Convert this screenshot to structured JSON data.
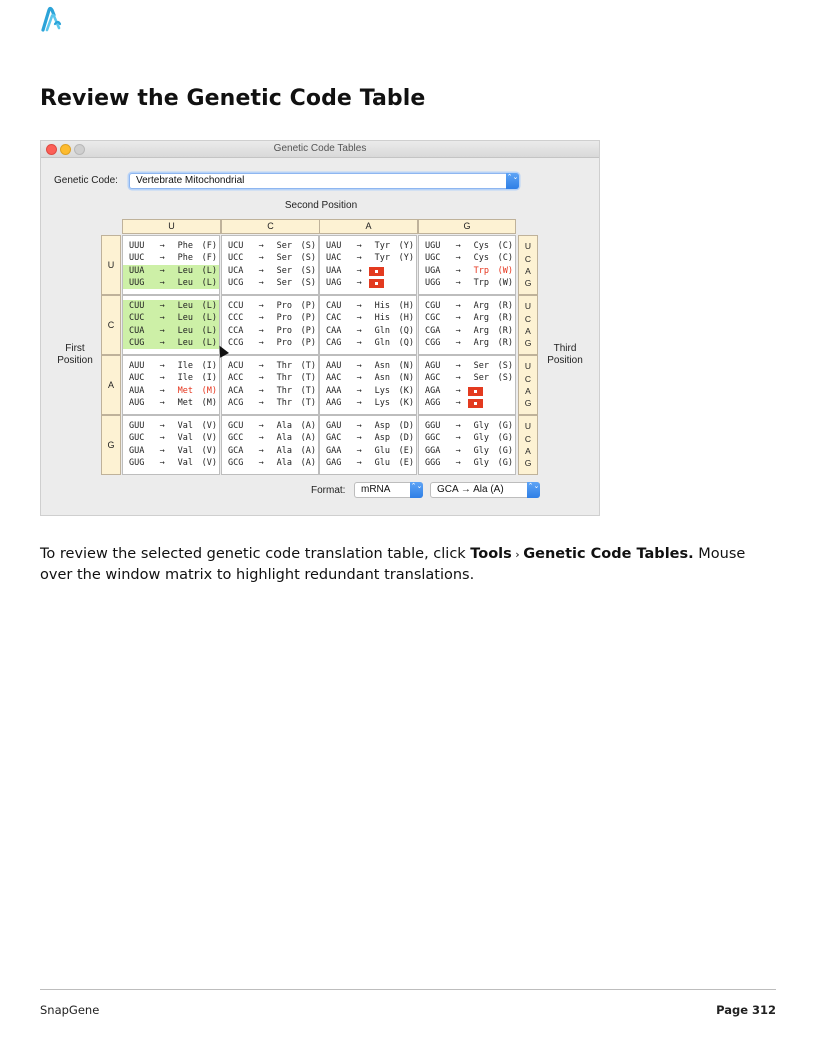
{
  "page_title": "Review the Genetic Code Table",
  "window": {
    "title": "Genetic Code Tables",
    "genetic_code_label": "Genetic Code:",
    "genetic_code_value": "Vertebrate Mitochondrial",
    "second_position": "Second Position",
    "first_position": "First\nPosition",
    "third_position": "Third\nPosition",
    "columns": [
      "U",
      "C",
      "A",
      "G"
    ],
    "rows": [
      "U",
      "C",
      "A",
      "G"
    ],
    "third_bases": [
      "U",
      "C",
      "A",
      "G"
    ],
    "format_label": "Format:",
    "format_value": "mRNA",
    "display_value": "GCA → Ala (A)",
    "stepper_glyph": "⌃⌄",
    "arrow": "→",
    "stop_color": "#e33a1f",
    "highlight_color": "#cdf0a7",
    "cells": [
      [
        [
          [
            "UUU",
            "Phe",
            "(F)",
            "",
            ""
          ],
          [
            "UUC",
            "Phe",
            "(F)",
            "",
            ""
          ],
          [
            "UUA",
            "Leu",
            "(L)",
            "hl",
            ""
          ],
          [
            "UUG",
            "Leu",
            "(L)",
            "hl",
            ""
          ]
        ],
        [
          [
            "UCU",
            "Ser",
            "(S)",
            "",
            ""
          ],
          [
            "UCC",
            "Ser",
            "(S)",
            "",
            ""
          ],
          [
            "UCA",
            "Ser",
            "(S)",
            "",
            ""
          ],
          [
            "UCG",
            "Ser",
            "(S)",
            "",
            ""
          ]
        ],
        [
          [
            "UAU",
            "Tyr",
            "(Y)",
            "",
            ""
          ],
          [
            "UAC",
            "Tyr",
            "(Y)",
            "",
            ""
          ],
          [
            "UAA",
            "",
            "",
            "",
            "stop"
          ],
          [
            "UAG",
            "",
            "",
            "",
            "stop"
          ]
        ],
        [
          [
            "UGU",
            "Cys",
            "(C)",
            "",
            ""
          ],
          [
            "UGC",
            "Cys",
            "(C)",
            "",
            ""
          ],
          [
            "UGA",
            "Trp",
            "(W)",
            "",
            "red"
          ],
          [
            "UGG",
            "Trp",
            "(W)",
            "",
            ""
          ]
        ]
      ],
      [
        [
          [
            "CUU",
            "Leu",
            "(L)",
            "hl",
            ""
          ],
          [
            "CUC",
            "Leu",
            "(L)",
            "hl",
            ""
          ],
          [
            "CUA",
            "Leu",
            "(L)",
            "hl",
            ""
          ],
          [
            "CUG",
            "Leu",
            "(L)",
            "hl",
            ""
          ]
        ],
        [
          [
            "CCU",
            "Pro",
            "(P)",
            "",
            ""
          ],
          [
            "CCC",
            "Pro",
            "(P)",
            "",
            ""
          ],
          [
            "CCA",
            "Pro",
            "(P)",
            "",
            ""
          ],
          [
            "CCG",
            "Pro",
            "(P)",
            "",
            ""
          ]
        ],
        [
          [
            "CAU",
            "His",
            "(H)",
            "",
            ""
          ],
          [
            "CAC",
            "His",
            "(H)",
            "",
            ""
          ],
          [
            "CAA",
            "Gln",
            "(Q)",
            "",
            ""
          ],
          [
            "CAG",
            "Gln",
            "(Q)",
            "",
            ""
          ]
        ],
        [
          [
            "CGU",
            "Arg",
            "(R)",
            "",
            ""
          ],
          [
            "CGC",
            "Arg",
            "(R)",
            "",
            ""
          ],
          [
            "CGA",
            "Arg",
            "(R)",
            "",
            ""
          ],
          [
            "CGG",
            "Arg",
            "(R)",
            "",
            ""
          ]
        ]
      ],
      [
        [
          [
            "AUU",
            "Ile",
            "(I)",
            "",
            ""
          ],
          [
            "AUC",
            "Ile",
            "(I)",
            "",
            ""
          ],
          [
            "AUA",
            "Met",
            "(M)",
            "",
            "red"
          ],
          [
            "AUG",
            "Met",
            "(M)",
            "",
            ""
          ]
        ],
        [
          [
            "ACU",
            "Thr",
            "(T)",
            "",
            ""
          ],
          [
            "ACC",
            "Thr",
            "(T)",
            "",
            ""
          ],
          [
            "ACA",
            "Thr",
            "(T)",
            "",
            ""
          ],
          [
            "ACG",
            "Thr",
            "(T)",
            "",
            ""
          ]
        ],
        [
          [
            "AAU",
            "Asn",
            "(N)",
            "",
            ""
          ],
          [
            "AAC",
            "Asn",
            "(N)",
            "",
            ""
          ],
          [
            "AAA",
            "Lys",
            "(K)",
            "",
            ""
          ],
          [
            "AAG",
            "Lys",
            "(K)",
            "",
            ""
          ]
        ],
        [
          [
            "AGU",
            "Ser",
            "(S)",
            "",
            ""
          ],
          [
            "AGC",
            "Ser",
            "(S)",
            "",
            ""
          ],
          [
            "AGA",
            "",
            "",
            "",
            "stop"
          ],
          [
            "AGG",
            "",
            "",
            "",
            "stop"
          ]
        ]
      ],
      [
        [
          [
            "GUU",
            "Val",
            "(V)",
            "",
            ""
          ],
          [
            "GUC",
            "Val",
            "(V)",
            "",
            ""
          ],
          [
            "GUA",
            "Val",
            "(V)",
            "",
            ""
          ],
          [
            "GUG",
            "Val",
            "(V)",
            "",
            ""
          ]
        ],
        [
          [
            "GCU",
            "Ala",
            "(A)",
            "",
            ""
          ],
          [
            "GCC",
            "Ala",
            "(A)",
            "",
            ""
          ],
          [
            "GCA",
            "Ala",
            "(A)",
            "",
            ""
          ],
          [
            "GCG",
            "Ala",
            "(A)",
            "",
            ""
          ]
        ],
        [
          [
            "GAU",
            "Asp",
            "(D)",
            "",
            ""
          ],
          [
            "GAC",
            "Asp",
            "(D)",
            "",
            ""
          ],
          [
            "GAA",
            "Glu",
            "(E)",
            "",
            ""
          ],
          [
            "GAG",
            "Glu",
            "(E)",
            "",
            ""
          ]
        ],
        [
          [
            "GGU",
            "Gly",
            "(G)",
            "",
            ""
          ],
          [
            "GGC",
            "Gly",
            "(G)",
            "",
            ""
          ],
          [
            "GGA",
            "Gly",
            "(G)",
            "",
            ""
          ],
          [
            "GGG",
            "Gly",
            "(G)",
            "",
            ""
          ]
        ]
      ]
    ]
  },
  "description": {
    "part1": "To review the selected genetic code translation table, click ",
    "tools": "Tools",
    "separator": " › ",
    "menu_item": "Genetic Code Tables.",
    "part2": " Mouse over the window matrix to highlight redundant translations."
  },
  "footer": {
    "left": "SnapGene",
    "right": "Page 312"
  }
}
